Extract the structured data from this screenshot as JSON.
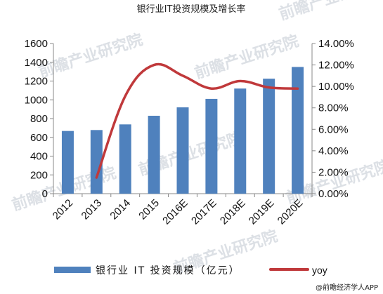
{
  "chart_data": {
    "type": "bar",
    "title": "银行业IT投资规模及增长率",
    "categories": [
      "2012",
      "2013",
      "2014",
      "2015",
      "2016E",
      "2017E",
      "2018E",
      "2019E",
      "2020E"
    ],
    "series": [
      {
        "name": "银行业 IT 投资规模（亿元）",
        "type": "bar",
        "axis": "left",
        "values": [
          668,
          678,
          738,
          830,
          920,
          1010,
          1120,
          1225,
          1350
        ]
      },
      {
        "name": "yoy",
        "type": "line",
        "axis": "right",
        "values": [
          null,
          1.5,
          9.1,
          12.0,
          11.0,
          9.8,
          10.5,
          9.9,
          9.8
        ]
      }
    ],
    "y_left": {
      "min": 0,
      "max": 1600,
      "step": 200,
      "ticks": [
        "0",
        "200",
        "400",
        "600",
        "800",
        "1000",
        "1200",
        "1400",
        "1600"
      ]
    },
    "y_right": {
      "min": 0,
      "max": 14,
      "step": 2,
      "ticks": [
        "0.00%",
        "2.00%",
        "4.00%",
        "6.00%",
        "8.00%",
        "10.00%",
        "12.00%",
        "14.00%"
      ]
    },
    "grid": false,
    "legend": "bottom",
    "colors": {
      "bar": "#4f81bd",
      "line": "#c0393b"
    }
  },
  "watermark": "前瞻产业研究院",
  "credit": "@前瞻经济学人APP"
}
